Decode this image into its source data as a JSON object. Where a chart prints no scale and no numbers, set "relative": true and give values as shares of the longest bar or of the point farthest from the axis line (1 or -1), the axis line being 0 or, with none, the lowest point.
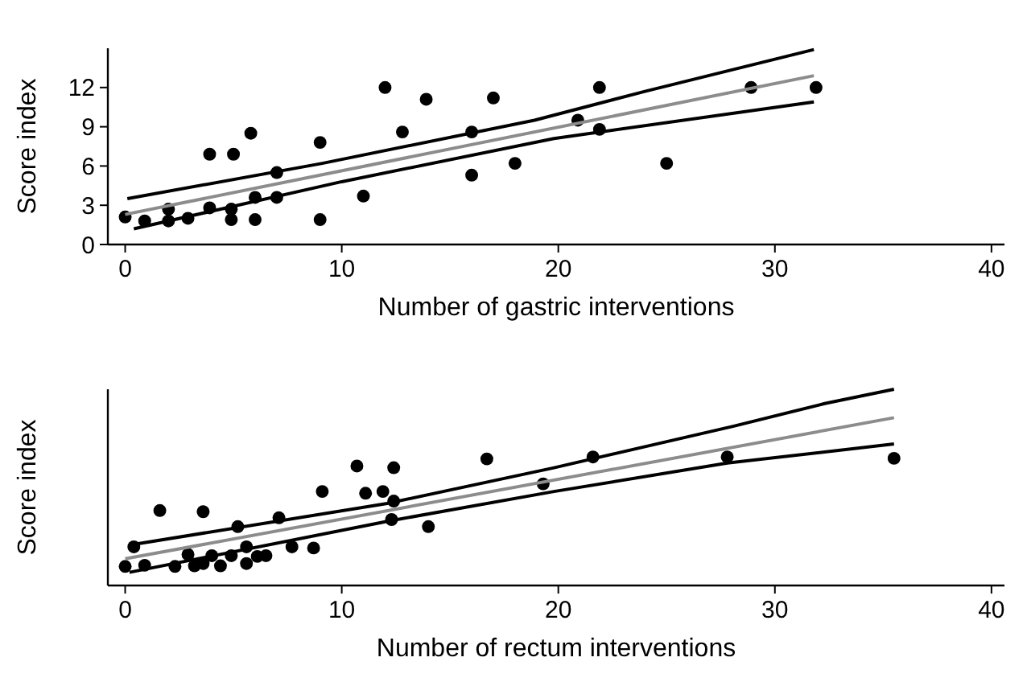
{
  "chart_data": [
    {
      "type": "scatter",
      "xlabel": "Number of gastric interventions",
      "ylabel": "Score index",
      "xlim": [
        -0.8,
        40.6
      ],
      "xticks": [
        0,
        10,
        20,
        30,
        40
      ],
      "ylim": [
        0,
        15
      ],
      "yticks": [
        0,
        3,
        6,
        9,
        12
      ],
      "grid": false,
      "series": [
        {
          "marker": "circle",
          "color": "#000000",
          "x": [
            0,
            0.9,
            2,
            2,
            2.9,
            3.9,
            3.9,
            4.9,
            4.9,
            5,
            5.8,
            6,
            6,
            7,
            7,
            9,
            9,
            11,
            12,
            12.8,
            13.9,
            16,
            16,
            17,
            18,
            20.9,
            21.9,
            21.9,
            25,
            28.9,
            31.9
          ],
          "values": [
            2.1,
            1.8,
            2.7,
            1.8,
            2.0,
            6.9,
            2.8,
            2.7,
            1.9,
            6.9,
            8.5,
            3.6,
            1.9,
            5.5,
            3.6,
            7.8,
            1.9,
            3.7,
            12,
            8.6,
            11.1,
            8.6,
            5.3,
            11.2,
            6.2,
            9.5,
            12,
            8.8,
            6.2,
            12,
            12
          ]
        },
        {
          "type": "line",
          "color": "#8c8c8c",
          "x": [
            0,
            31.8
          ],
          "values": [
            2.3,
            12.9
          ]
        },
        {
          "type": "line",
          "color": "#000000",
          "x": [
            0.1,
            9.1,
            18.9,
            24,
            31.8
          ],
          "values": [
            3.5,
            6.2,
            9.5,
            11.7,
            14.9
          ]
        },
        {
          "type": "line",
          "color": "#000000",
          "x": [
            0.4,
            10,
            19.8,
            31.8
          ],
          "values": [
            1.2,
            4.8,
            8.1,
            10.9
          ]
        }
      ]
    },
    {
      "type": "scatter",
      "xlabel": "Number of rectum interventions",
      "ylabel": "Score index",
      "relative": true,
      "xlim": [
        -0.8,
        40.6
      ],
      "xticks": [
        0,
        10,
        20,
        30,
        40
      ],
      "grid": false,
      "series": [
        {
          "marker": "circle",
          "color": "#000000",
          "x": [
            0,
            0.4,
            0.9,
            1.6,
            2.3,
            2.9,
            3.2,
            3.6,
            3.6,
            4.0,
            4.4,
            4.9,
            5.2,
            5.6,
            5.6,
            6.1,
            6.5,
            7.1,
            7.7,
            8.7,
            9.1,
            10.7,
            11.1,
            11.9,
            12.4,
            12.4,
            12.3,
            14.0,
            16.7,
            19.3,
            21.6,
            27.8,
            35.5
          ],
          "values": [
            0.097,
            0.197,
            0.103,
            0.382,
            0.097,
            0.158,
            0.1,
            0.112,
            0.376,
            0.152,
            0.1,
            0.152,
            0.3,
            0.197,
            0.112,
            0.148,
            0.152,
            0.345,
            0.197,
            0.191,
            0.479,
            0.609,
            0.47,
            0.479,
            0.6,
            0.43,
            0.336,
            0.3,
            0.645,
            0.518,
            0.655,
            0.655,
            0.648
          ]
        },
        {
          "type": "line",
          "color": "#8c8c8c",
          "x": [
            0,
            35.5
          ],
          "values": [
            0.136,
            0.855
          ]
        },
        {
          "type": "line",
          "color": "#000000",
          "x": [
            0.2,
            12.1,
            19.8,
            28.1,
            32.3,
            35.5
          ],
          "values": [
            0.206,
            0.418,
            0.6,
            0.812,
            0.927,
            1.0
          ]
        },
        {
          "type": "line",
          "color": "#000000",
          "x": [
            0.2,
            12.1,
            19.8,
            27.8,
            35.5
          ],
          "values": [
            0.067,
            0.327,
            0.479,
            0.624,
            0.721
          ]
        }
      ]
    }
  ]
}
